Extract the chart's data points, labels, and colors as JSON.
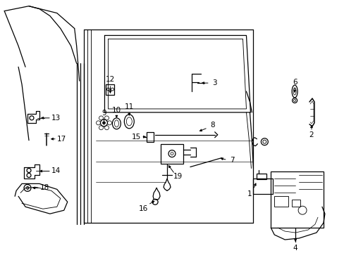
{
  "bg_color": "#ffffff",
  "line_color": "#000000",
  "figsize": [
    4.89,
    3.6
  ],
  "dpi": 100,
  "lw": 0.9,
  "font_size": 7.5
}
